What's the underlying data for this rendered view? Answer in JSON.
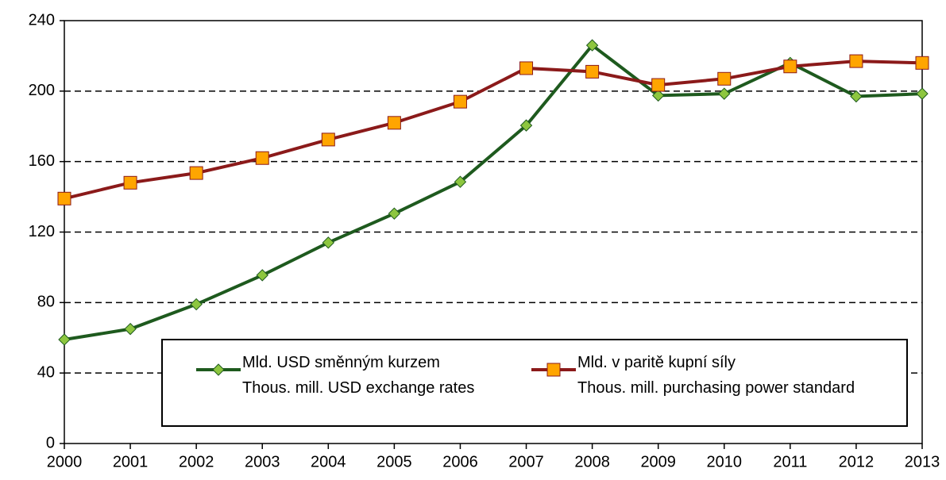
{
  "chart_data": {
    "type": "line",
    "categories": [
      "2000",
      "2001",
      "2002",
      "2003",
      "2004",
      "2005",
      "2006",
      "2007",
      "2008",
      "2009",
      "2010",
      "2011",
      "2012",
      "2013"
    ],
    "series": [
      {
        "name": "Mld. USD směnným kurzem\nThous. mill. USD exchange rates",
        "color": "#1e5a1e",
        "marker": "diamond",
        "marker_color": "#8dc63f",
        "values": [
          59,
          65,
          79,
          95.5,
          114,
          130.5,
          148.5,
          180.5,
          226,
          197.5,
          198.5,
          216,
          197,
          198.5
        ]
      },
      {
        "name": "Mld. v paritě kupní síly\nThous. mill. purchasing power standard",
        "color": "#8b1a1a",
        "marker": "square",
        "marker_color": "#ffa500",
        "values": [
          139,
          148,
          153.5,
          162,
          172.5,
          182,
          194,
          213,
          211,
          203.5,
          207,
          214,
          217,
          216
        ]
      }
    ],
    "ylim": [
      0,
      240
    ],
    "yticks": [
      0,
      40,
      80,
      120,
      160,
      200,
      240
    ],
    "grid": true,
    "legend": "bottom-right"
  }
}
